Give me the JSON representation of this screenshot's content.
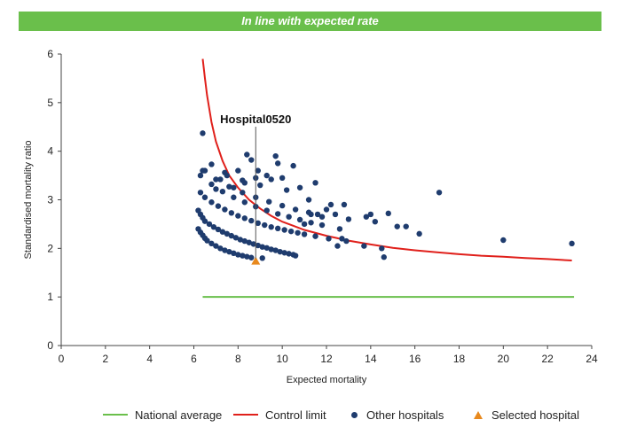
{
  "banner": {
    "text": "In line with expected rate"
  },
  "colors": {
    "banner_bg": "#6abf4b",
    "national_average": "#6abf4b",
    "control_limit": "#e0201b",
    "other_hospitals": "#1f3c6e",
    "selected_hospital": "#e8891e"
  },
  "chart_data": {
    "type": "scatter",
    "title": "",
    "xlabel": "Expected mortality",
    "ylabel": "Standardised mortality ratio",
    "xlim": [
      0,
      24
    ],
    "ylim": [
      0,
      6
    ],
    "xticks": [
      0,
      2,
      4,
      6,
      8,
      10,
      12,
      14,
      16,
      18,
      20,
      22,
      24
    ],
    "yticks": [
      0,
      1,
      2,
      3,
      4,
      5,
      6
    ],
    "grid": false,
    "legend_position": "bottom",
    "annotation": {
      "text": "Hospital0520",
      "x": 8.8,
      "y": 1.74
    },
    "series": [
      {
        "name": "National average",
        "type": "line",
        "x": [
          6.4,
          23.2
        ],
        "y": [
          1,
          1
        ]
      },
      {
        "name": "Control limit",
        "type": "line",
        "x": [
          6.4,
          6.5,
          6.6,
          6.8,
          7.0,
          7.3,
          7.6,
          8.0,
          8.5,
          9.0,
          9.5,
          10.0,
          11,
          12,
          13,
          14,
          15,
          16,
          17,
          18,
          19,
          20,
          21,
          22,
          23.1
        ],
        "y": [
          5.9,
          5.5,
          5.15,
          4.6,
          4.2,
          3.8,
          3.5,
          3.25,
          3.0,
          2.82,
          2.67,
          2.55,
          2.38,
          2.26,
          2.16,
          2.08,
          2.01,
          1.96,
          1.92,
          1.88,
          1.85,
          1.83,
          1.8,
          1.78,
          1.75
        ]
      },
      {
        "name": "Other hospitals",
        "type": "scatter",
        "x": [
          6.2,
          6.3,
          6.4,
          6.5,
          6.6,
          6.8,
          7.0,
          7.2,
          7.4,
          7.6,
          7.8,
          8.0,
          8.2,
          8.4,
          8.6,
          6.2,
          6.3,
          6.4,
          6.5,
          6.7,
          6.9,
          7.1,
          7.3,
          7.5,
          7.7,
          7.9,
          8.1,
          8.3,
          8.5,
          8.7,
          8.9,
          9.1,
          9.3,
          9.5,
          9.7,
          9.9,
          10.1,
          10.3,
          10.5,
          6.3,
          6.5,
          6.8,
          7.1,
          7.4,
          7.7,
          8.0,
          8.3,
          8.6,
          8.9,
          9.2,
          9.5,
          9.8,
          10.1,
          10.4,
          10.7,
          11.0,
          6.3,
          6.8,
          7.3,
          7.8,
          8.3,
          8.8,
          9.3,
          9.8,
          10.3,
          10.8,
          11.3,
          11.8,
          6.4,
          7.0,
          7.6,
          8.2,
          8.8,
          9.4,
          10.0,
          10.6,
          11.2,
          6.4,
          6.5,
          6.8,
          7.0,
          7.2,
          7.4,
          7.5,
          7.8,
          8.0,
          8.2,
          8.3,
          8.4,
          8.6,
          8.8,
          8.9,
          9.0,
          9.1,
          9.3,
          9.5,
          9.7,
          9.8,
          10.0,
          10.2,
          10.5,
          10.6,
          10.8,
          11.0,
          11.2,
          11.3,
          11.5,
          11.5,
          11.6,
          11.8,
          12.0,
          12.1,
          12.2,
          12.4,
          12.5,
          12.6,
          12.7,
          12.8,
          12.9,
          13.0,
          13.7,
          13.8,
          14.0,
          14.2,
          14.5,
          14.6,
          14.8,
          15.2,
          15.6,
          16.2,
          17.1,
          20.0,
          23.1
        ],
        "y": [
          2.4,
          2.33,
          2.27,
          2.21,
          2.16,
          2.1,
          2.05,
          2.0,
          1.96,
          1.93,
          1.9,
          1.87,
          1.85,
          1.83,
          1.81,
          2.78,
          2.7,
          2.63,
          2.56,
          2.5,
          2.44,
          2.39,
          2.34,
          2.3,
          2.26,
          2.22,
          2.18,
          2.15,
          2.12,
          2.09,
          2.06,
          2.03,
          2.01,
          1.98,
          1.96,
          1.93,
          1.91,
          1.89,
          1.87,
          3.15,
          3.05,
          2.95,
          2.87,
          2.8,
          2.73,
          2.67,
          2.62,
          2.57,
          2.52,
          2.48,
          2.44,
          2.41,
          2.38,
          2.35,
          2.32,
          2.29,
          3.5,
          3.32,
          3.17,
          3.05,
          2.95,
          2.86,
          2.78,
          2.71,
          2.65,
          2.59,
          2.53,
          2.48,
          3.6,
          3.42,
          3.27,
          3.15,
          3.05,
          2.96,
          2.88,
          2.8,
          2.74,
          4.37,
          3.6,
          3.73,
          3.22,
          3.42,
          3.56,
          3.5,
          3.25,
          3.6,
          3.4,
          3.35,
          3.93,
          3.82,
          3.45,
          3.6,
          3.3,
          1.8,
          3.5,
          3.42,
          3.9,
          3.75,
          3.45,
          3.2,
          3.7,
          1.85,
          3.25,
          2.5,
          3.0,
          2.7,
          3.35,
          2.25,
          2.7,
          2.65,
          2.8,
          2.2,
          2.9,
          2.7,
          2.05,
          2.4,
          2.2,
          2.9,
          2.15,
          2.6,
          2.05,
          2.65,
          2.7,
          2.55,
          2.0,
          1.82,
          2.72,
          2.45,
          2.45,
          2.3,
          3.15,
          2.17,
          2.1
        ]
      },
      {
        "name": "Selected hospital",
        "type": "scatter",
        "x": [
          8.8
        ],
        "y": [
          1.74
        ]
      }
    ]
  }
}
